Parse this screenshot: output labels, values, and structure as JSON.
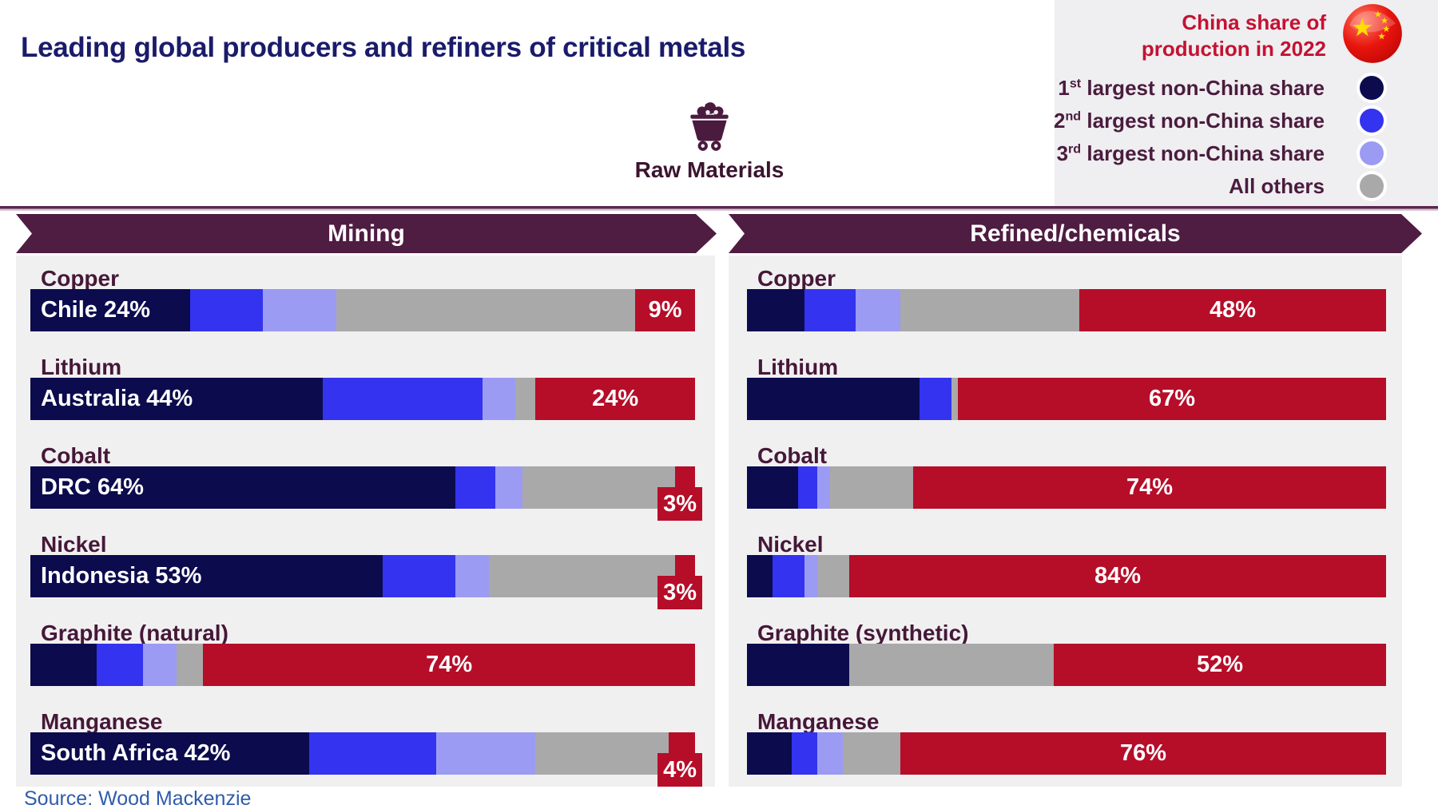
{
  "title": "Leading global producers and refiners of critical metals",
  "source": "Source: Wood Mackenzie",
  "flow": {
    "center_label": "Raw Materials"
  },
  "legend": {
    "title_line1": "China share of",
    "title_line2": "production in 2022",
    "items": [
      {
        "num": "1",
        "sup": "st",
        "text": " largest non-China share",
        "key": "first_non_china"
      },
      {
        "num": "2",
        "sup": "nd",
        "text": " largest non-China share",
        "key": "second_non_china"
      },
      {
        "num": "3",
        "sup": "rd",
        "text": " largest non-China share",
        "key": "third_non_china"
      },
      {
        "num": "",
        "sup": "",
        "text": "All others",
        "key": "all_others"
      }
    ]
  },
  "colors": {
    "segments": {
      "first_non_china": "#0b0b4e",
      "second_non_china": "#3333f0",
      "third_non_china": "#9b9bf3",
      "all_others": "#a9a9a9",
      "china": "#b60d29"
    },
    "banner": "#4f1c42",
    "panel_bg": "#f1f0f1",
    "legend_bg": "#efeef0",
    "title_text": "#1b1b6b",
    "metal_label_text": "#451838",
    "legend_title_text": "#c41233",
    "source_text": "#2f5cab"
  },
  "chart_data": {
    "type": "bar",
    "orientation": "horizontal-stacked",
    "unit": "percent share of global production in 2022",
    "series_order": [
      "first_non_china",
      "second_non_china",
      "third_non_china",
      "all_others",
      "china"
    ],
    "panels": [
      {
        "title": "Mining",
        "rows": [
          {
            "metal": "Copper",
            "leader_label": "Chile 24%",
            "china_label": "9%",
            "china_label_overflow": false,
            "values": {
              "first_non_china": 24,
              "second_non_china": 11,
              "third_non_china": 11,
              "all_others": 45,
              "china": 9
            }
          },
          {
            "metal": "Lithium",
            "leader_label": "Australia 44%",
            "china_label": "24%",
            "china_label_overflow": false,
            "values": {
              "first_non_china": 44,
              "second_non_china": 24,
              "third_non_china": 5,
              "all_others": 3,
              "china": 24
            }
          },
          {
            "metal": "Cobalt",
            "leader_label": "DRC 64%",
            "china_label": "3%",
            "china_label_overflow": true,
            "values": {
              "first_non_china": 64,
              "second_non_china": 6,
              "third_non_china": 4,
              "all_others": 23,
              "china": 3
            }
          },
          {
            "metal": "Nickel",
            "leader_label": "Indonesia 53%",
            "china_label": "3%",
            "china_label_overflow": true,
            "values": {
              "first_non_china": 53,
              "second_non_china": 11,
              "third_non_china": 5,
              "all_others": 28,
              "china": 3
            }
          },
          {
            "metal": "Graphite (natural)",
            "leader_label": "",
            "china_label": "74%",
            "china_label_overflow": false,
            "values": {
              "first_non_china": 10,
              "second_non_china": 7,
              "third_non_china": 5,
              "all_others": 4,
              "china": 74
            }
          },
          {
            "metal": "Manganese",
            "leader_label": "South Africa 42%",
            "china_label": "4%",
            "china_label_overflow": true,
            "values": {
              "first_non_china": 42,
              "second_non_china": 19,
              "third_non_china": 15,
              "all_others": 20,
              "china": 4
            }
          }
        ]
      },
      {
        "title": "Refined/chemicals",
        "rows": [
          {
            "metal": "Copper",
            "leader_label": "",
            "china_label": "48%",
            "china_label_overflow": false,
            "values": {
              "first_non_china": 9,
              "second_non_china": 8,
              "third_non_china": 7,
              "all_others": 28,
              "china": 48
            }
          },
          {
            "metal": "Lithium",
            "leader_label": "",
            "china_label": "67%",
            "china_label_overflow": false,
            "values": {
              "first_non_china": 27,
              "second_non_china": 5,
              "third_non_china": 0,
              "all_others": 1,
              "china": 67
            }
          },
          {
            "metal": "Cobalt",
            "leader_label": "",
            "china_label": "74%",
            "china_label_overflow": false,
            "values": {
              "first_non_china": 8,
              "second_non_china": 3,
              "third_non_china": 2,
              "all_others": 13,
              "china": 74
            }
          },
          {
            "metal": "Nickel",
            "leader_label": "",
            "china_label": "84%",
            "china_label_overflow": false,
            "values": {
              "first_non_china": 4,
              "second_non_china": 5,
              "third_non_china": 2,
              "all_others": 5,
              "china": 84
            }
          },
          {
            "metal": "Graphite (synthetic)",
            "leader_label": "",
            "china_label": "52%",
            "china_label_overflow": false,
            "values": {
              "first_non_china": 16,
              "second_non_china": 0,
              "third_non_china": 0,
              "all_others": 32,
              "china": 52
            }
          },
          {
            "metal": "Manganese",
            "leader_label": "",
            "china_label": "76%",
            "china_label_overflow": false,
            "values": {
              "first_non_china": 7,
              "second_non_china": 4,
              "third_non_china": 4,
              "all_others": 9,
              "china": 76
            }
          }
        ]
      }
    ]
  }
}
